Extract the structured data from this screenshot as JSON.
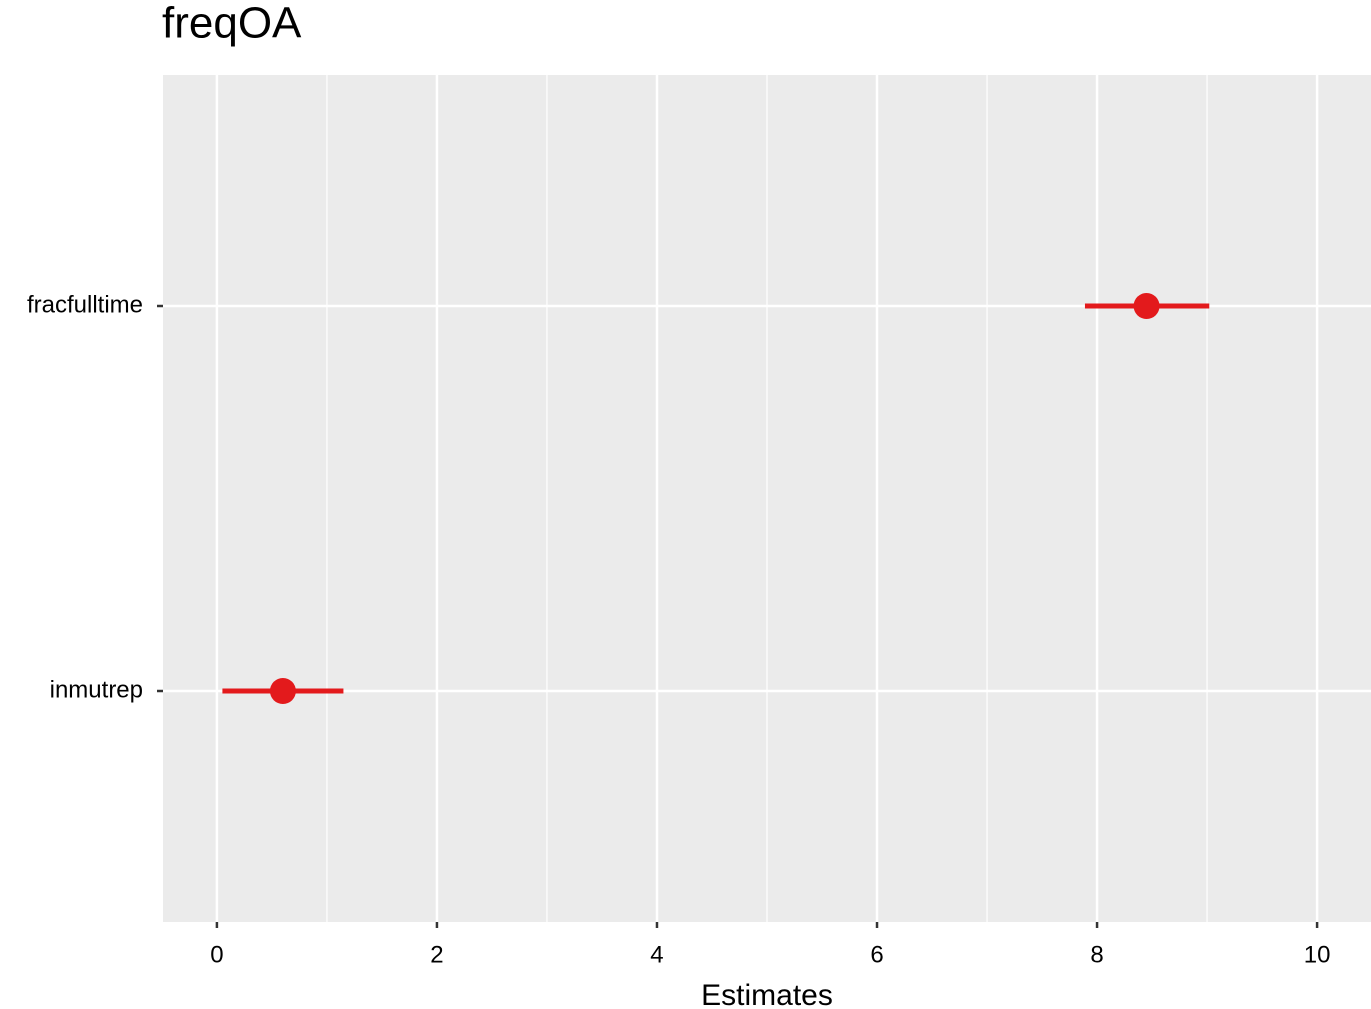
{
  "chart_data": {
    "type": "coefplot",
    "title": "freqOA",
    "xlabel": "Estimates",
    "categories": [
      "fracfulltime",
      "inmutrep"
    ],
    "series": [
      {
        "color": "#e31a1c",
        "values": [
          8.45,
          0.6
        ],
        "lower": [
          7.89,
          0.05
        ],
        "upper": [
          9.02,
          1.15
        ]
      }
    ],
    "xlim": [
      -0.49,
      10.49
    ],
    "xticks": [
      0,
      2,
      4,
      6,
      8,
      10
    ],
    "xminorticks": [
      1,
      3,
      5,
      7,
      9
    ],
    "grid": true
  }
}
